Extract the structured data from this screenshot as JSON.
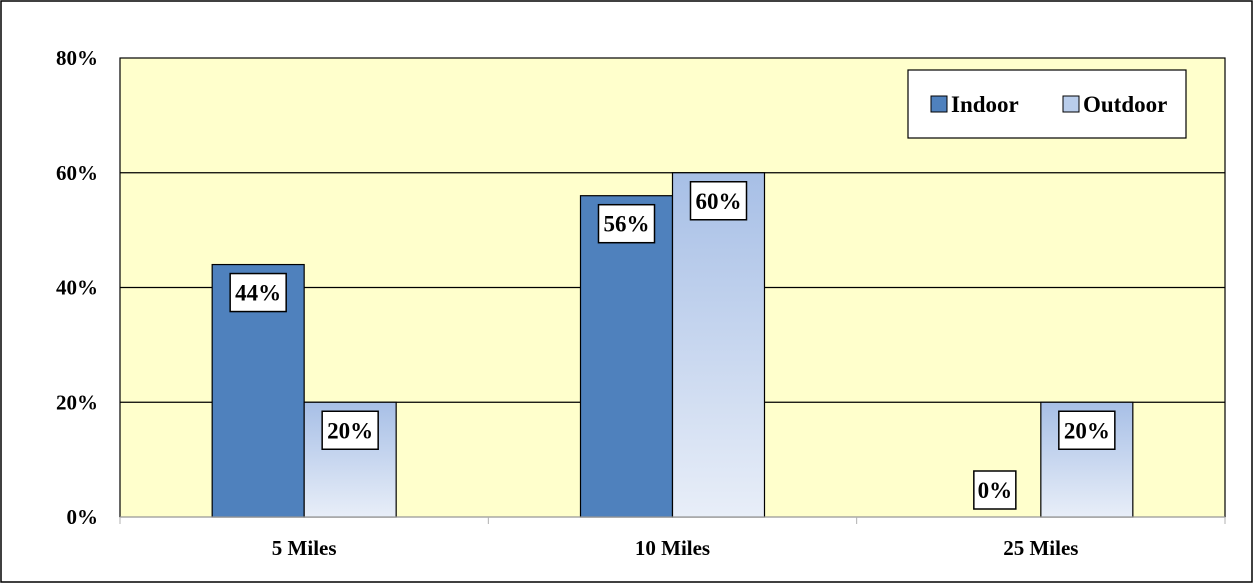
{
  "chart_data": {
    "type": "bar",
    "categories": [
      "5 Miles",
      "10 Miles",
      "25 Miles"
    ],
    "series": [
      {
        "name": "Indoor",
        "values": [
          44,
          56,
          0
        ],
        "color": "#4f81bd"
      },
      {
        "name": "Outdoor",
        "values": [
          20,
          60,
          20
        ],
        "color": "#b9cdeb"
      }
    ],
    "data_labels": [
      [
        "44%",
        "56%",
        "0%"
      ],
      [
        "20%",
        "60%",
        "20%"
      ]
    ],
    "y_ticks": [
      0,
      20,
      40,
      60,
      80
    ],
    "y_tick_labels": [
      "0%",
      "20%",
      "40%",
      "60%",
      "80%"
    ],
    "ylim": [
      0,
      80
    ],
    "grid": true,
    "legend_position": "top-right",
    "plot_background": "#ffffcc"
  }
}
